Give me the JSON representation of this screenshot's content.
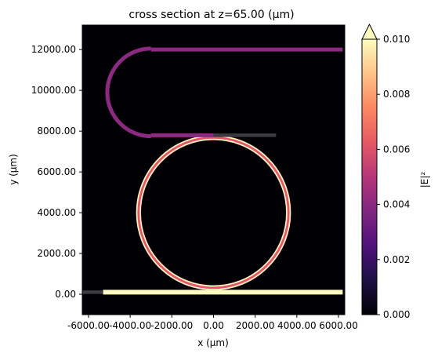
{
  "chart_data": {
    "type": "heatmap",
    "title": "cross section at z=65.00 (µm)",
    "xlabel": "x (µm)",
    "ylabel": "y (µm)",
    "xlim": [
      -6300,
      6300
    ],
    "ylim": [
      -1000,
      13200
    ],
    "x_ticks": [
      -6000,
      -4000,
      -2000,
      0,
      2000,
      4000,
      6000
    ],
    "x_tick_labels": [
      "-6000.00",
      "-4000.00",
      "-2000.00",
      "0.00",
      "2000.00",
      "4000.00",
      "6000.00"
    ],
    "y_ticks": [
      0,
      2000,
      4000,
      6000,
      8000,
      10000,
      12000
    ],
    "y_tick_labels": [
      "0.00",
      "2000.00",
      "4000.00",
      "6000.00",
      "8000.00",
      "10000.00",
      "12000.00"
    ],
    "colorbar": {
      "label": "|E|²",
      "range": [
        0.0,
        0.01
      ],
      "ticks": [
        0.0,
        0.002,
        0.004,
        0.006,
        0.008,
        0.01
      ],
      "tick_labels": [
        "0.000",
        "0.002",
        "0.004",
        "0.006",
        "0.008",
        "0.010"
      ],
      "extend": "max",
      "colormap": "magma"
    },
    "features": [
      {
        "name": "bus waveguide",
        "type": "straight",
        "x_range": [
          -5300,
          6200
        ],
        "y": 100,
        "intensity": 0.01
      },
      {
        "name": "bus waveguide stub",
        "type": "straight",
        "x_range": [
          -6300,
          -5300
        ],
        "y": 100,
        "intensity": 0.0005
      },
      {
        "name": "ring resonator",
        "type": "ring",
        "center": [
          0,
          4000
        ],
        "radius": 3600,
        "intensity": 0.008
      },
      {
        "name": "drop waveguide",
        "type": "straight",
        "x_range": [
          -3000,
          3000
        ],
        "y": 7800,
        "intensity": 0.0008
      },
      {
        "name": "drop waveguide coupled",
        "type": "straight",
        "x_range": [
          -3000,
          0
        ],
        "y": 7800,
        "intensity": 0.004
      },
      {
        "name": "drop waveguide bend",
        "type": "bend",
        "center": [
          -3000,
          9900
        ],
        "radius": 2100,
        "intensity": 0.004
      },
      {
        "name": "drop waveguide output",
        "type": "straight",
        "x_range": [
          -3000,
          6200
        ],
        "y": 12000,
        "intensity": 0.004
      }
    ]
  },
  "colors": {
    "background": "#000004",
    "ring_outer": "#fcfdbf",
    "ring_inner": "#e5546d",
    "bus": "#fcfdbf",
    "drop": "#8c2981",
    "stub": "#3b3b42"
  }
}
